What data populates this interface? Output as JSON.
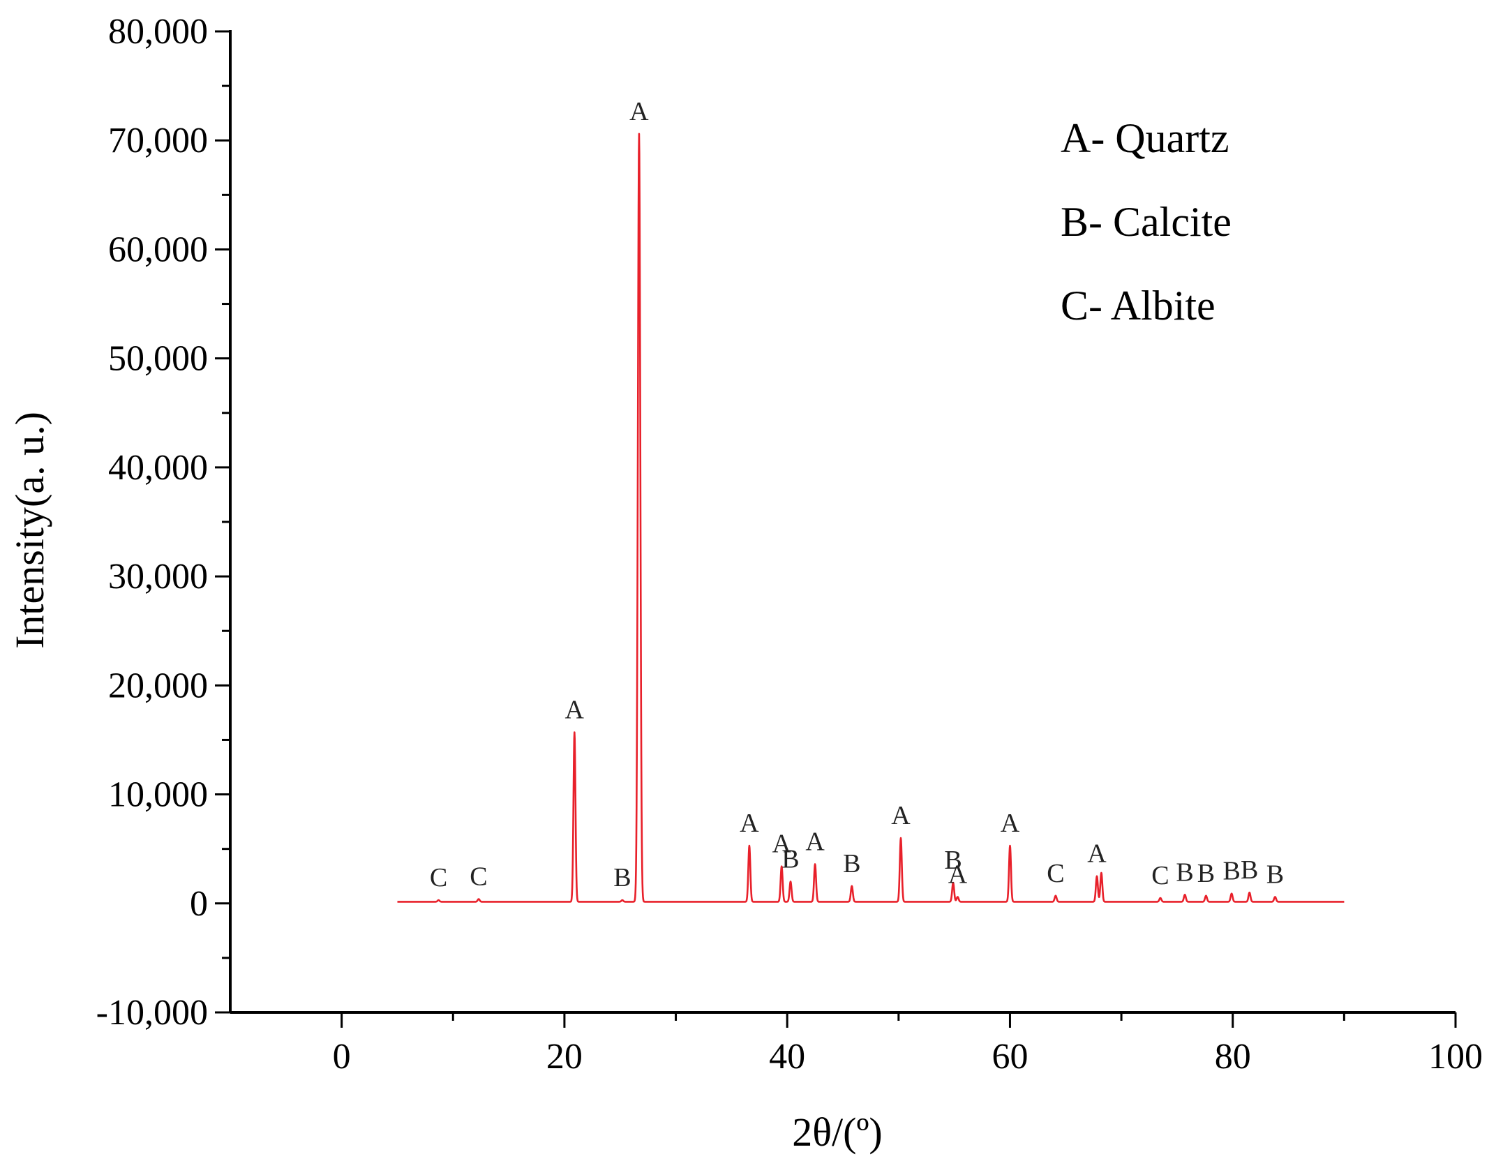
{
  "chart_data": {
    "type": "line",
    "xlabel": "2θ/(º)",
    "ylabel": "Intensity(a. u.)",
    "xlim": [
      -10,
      100
    ],
    "ylim": [
      -10000,
      80000
    ],
    "x_ticks": [
      "0",
      "20",
      "40",
      "60",
      "80",
      "100"
    ],
    "x_tick_values": [
      0,
      20,
      40,
      60,
      80,
      100
    ],
    "y_ticks": [
      "-10,000",
      "0",
      "10,000",
      "20,000",
      "30,000",
      "40,000",
      "50,000",
      "60,000",
      "70,000",
      "80,000"
    ],
    "y_tick_values": [
      -10000,
      0,
      10000,
      20000,
      30000,
      40000,
      50000,
      60000,
      70000,
      80000
    ],
    "grid": false,
    "legend_position": "top-right",
    "legend": [
      {
        "text": "A- Quartz"
      },
      {
        "text": "B- Calcite"
      },
      {
        "text": "C- Albite"
      }
    ],
    "series": [
      {
        "color": "#e8202a",
        "x_range": [
          5,
          90
        ],
        "baseline": 150,
        "peaks": [
          {
            "x": 8.7,
            "y": 300,
            "label": "C"
          },
          {
            "x": 12.3,
            "y": 400,
            "label": "C"
          },
          {
            "x": 20.9,
            "y": 15700,
            "label": "A"
          },
          {
            "x": 25.2,
            "y": 300,
            "label": "B"
          },
          {
            "x": 26.7,
            "y": 70600,
            "label": "A"
          },
          {
            "x": 36.6,
            "y": 5300,
            "label": "A"
          },
          {
            "x": 39.5,
            "y": 3400,
            "label": "A"
          },
          {
            "x": 40.3,
            "y": 2000,
            "label": "B"
          },
          {
            "x": 42.5,
            "y": 3600,
            "label": "A"
          },
          {
            "x": 45.8,
            "y": 1600,
            "label": "B"
          },
          {
            "x": 50.2,
            "y": 6000,
            "label": "A"
          },
          {
            "x": 54.9,
            "y": 1900,
            "label": "B"
          },
          {
            "x": 55.3,
            "y": 600,
            "label": "A"
          },
          {
            "x": 60.0,
            "y": 5300,
            "label": "A"
          },
          {
            "x": 64.1,
            "y": 700,
            "label": "C"
          },
          {
            "x": 67.8,
            "y": 2500,
            "label": "A"
          },
          {
            "x": 68.2,
            "y": 2800,
            "label": ""
          },
          {
            "x": 73.5,
            "y": 500,
            "label": "C"
          },
          {
            "x": 75.7,
            "y": 800,
            "label": "B"
          },
          {
            "x": 77.6,
            "y": 700,
            "label": "B"
          },
          {
            "x": 79.9,
            "y": 900,
            "label": "B"
          },
          {
            "x": 81.5,
            "y": 1000,
            "label": "B"
          },
          {
            "x": 83.8,
            "y": 600,
            "label": "B"
          }
        ]
      }
    ]
  }
}
